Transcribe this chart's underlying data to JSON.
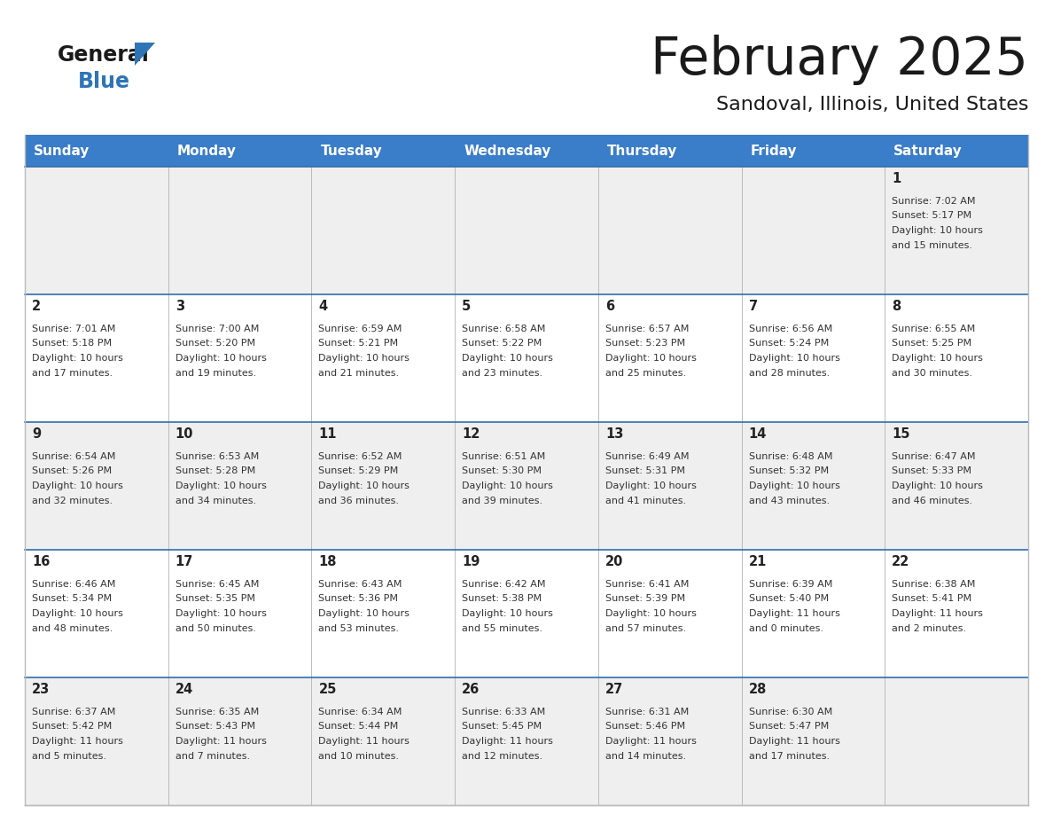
{
  "title": "February 2025",
  "subtitle": "Sandoval, Illinois, United States",
  "header_bg": "#3A7DC9",
  "header_text_color": "#FFFFFF",
  "days_of_week": [
    "Sunday",
    "Monday",
    "Tuesday",
    "Wednesday",
    "Thursday",
    "Friday",
    "Saturday"
  ],
  "cell_bg_row0": "#EFEFEF",
  "cell_bg_row1": "#FFFFFF",
  "cell_border_color": "#BBBBBB",
  "header_border_color": "#2E6EAE",
  "day_number_color": "#222222",
  "text_color": "#333333",
  "logo_general_color": "#1A1A1A",
  "logo_blue_color": "#2E75B6",
  "weeks": [
    [
      {
        "day": null
      },
      {
        "day": null
      },
      {
        "day": null
      },
      {
        "day": null
      },
      {
        "day": null
      },
      {
        "day": null
      },
      {
        "day": 1,
        "sunrise": "7:02 AM",
        "sunset": "5:17 PM",
        "daylight": "10 hours\nand 15 minutes."
      }
    ],
    [
      {
        "day": 2,
        "sunrise": "7:01 AM",
        "sunset": "5:18 PM",
        "daylight": "10 hours\nand 17 minutes."
      },
      {
        "day": 3,
        "sunrise": "7:00 AM",
        "sunset": "5:20 PM",
        "daylight": "10 hours\nand 19 minutes."
      },
      {
        "day": 4,
        "sunrise": "6:59 AM",
        "sunset": "5:21 PM",
        "daylight": "10 hours\nand 21 minutes."
      },
      {
        "day": 5,
        "sunrise": "6:58 AM",
        "sunset": "5:22 PM",
        "daylight": "10 hours\nand 23 minutes."
      },
      {
        "day": 6,
        "sunrise": "6:57 AM",
        "sunset": "5:23 PM",
        "daylight": "10 hours\nand 25 minutes."
      },
      {
        "day": 7,
        "sunrise": "6:56 AM",
        "sunset": "5:24 PM",
        "daylight": "10 hours\nand 28 minutes."
      },
      {
        "day": 8,
        "sunrise": "6:55 AM",
        "sunset": "5:25 PM",
        "daylight": "10 hours\nand 30 minutes."
      }
    ],
    [
      {
        "day": 9,
        "sunrise": "6:54 AM",
        "sunset": "5:26 PM",
        "daylight": "10 hours\nand 32 minutes."
      },
      {
        "day": 10,
        "sunrise": "6:53 AM",
        "sunset": "5:28 PM",
        "daylight": "10 hours\nand 34 minutes."
      },
      {
        "day": 11,
        "sunrise": "6:52 AM",
        "sunset": "5:29 PM",
        "daylight": "10 hours\nand 36 minutes."
      },
      {
        "day": 12,
        "sunrise": "6:51 AM",
        "sunset": "5:30 PM",
        "daylight": "10 hours\nand 39 minutes."
      },
      {
        "day": 13,
        "sunrise": "6:49 AM",
        "sunset": "5:31 PM",
        "daylight": "10 hours\nand 41 minutes."
      },
      {
        "day": 14,
        "sunrise": "6:48 AM",
        "sunset": "5:32 PM",
        "daylight": "10 hours\nand 43 minutes."
      },
      {
        "day": 15,
        "sunrise": "6:47 AM",
        "sunset": "5:33 PM",
        "daylight": "10 hours\nand 46 minutes."
      }
    ],
    [
      {
        "day": 16,
        "sunrise": "6:46 AM",
        "sunset": "5:34 PM",
        "daylight": "10 hours\nand 48 minutes."
      },
      {
        "day": 17,
        "sunrise": "6:45 AM",
        "sunset": "5:35 PM",
        "daylight": "10 hours\nand 50 minutes."
      },
      {
        "day": 18,
        "sunrise": "6:43 AM",
        "sunset": "5:36 PM",
        "daylight": "10 hours\nand 53 minutes."
      },
      {
        "day": 19,
        "sunrise": "6:42 AM",
        "sunset": "5:38 PM",
        "daylight": "10 hours\nand 55 minutes."
      },
      {
        "day": 20,
        "sunrise": "6:41 AM",
        "sunset": "5:39 PM",
        "daylight": "10 hours\nand 57 minutes."
      },
      {
        "day": 21,
        "sunrise": "6:39 AM",
        "sunset": "5:40 PM",
        "daylight": "11 hours\nand 0 minutes."
      },
      {
        "day": 22,
        "sunrise": "6:38 AM",
        "sunset": "5:41 PM",
        "daylight": "11 hours\nand 2 minutes."
      }
    ],
    [
      {
        "day": 23,
        "sunrise": "6:37 AM",
        "sunset": "5:42 PM",
        "daylight": "11 hours\nand 5 minutes."
      },
      {
        "day": 24,
        "sunrise": "6:35 AM",
        "sunset": "5:43 PM",
        "daylight": "11 hours\nand 7 minutes."
      },
      {
        "day": 25,
        "sunrise": "6:34 AM",
        "sunset": "5:44 PM",
        "daylight": "11 hours\nand 10 minutes."
      },
      {
        "day": 26,
        "sunrise": "6:33 AM",
        "sunset": "5:45 PM",
        "daylight": "11 hours\nand 12 minutes."
      },
      {
        "day": 27,
        "sunrise": "6:31 AM",
        "sunset": "5:46 PM",
        "daylight": "11 hours\nand 14 minutes."
      },
      {
        "day": 28,
        "sunrise": "6:30 AM",
        "sunset": "5:47 PM",
        "daylight": "11 hours\nand 17 minutes."
      },
      {
        "day": null
      }
    ]
  ]
}
